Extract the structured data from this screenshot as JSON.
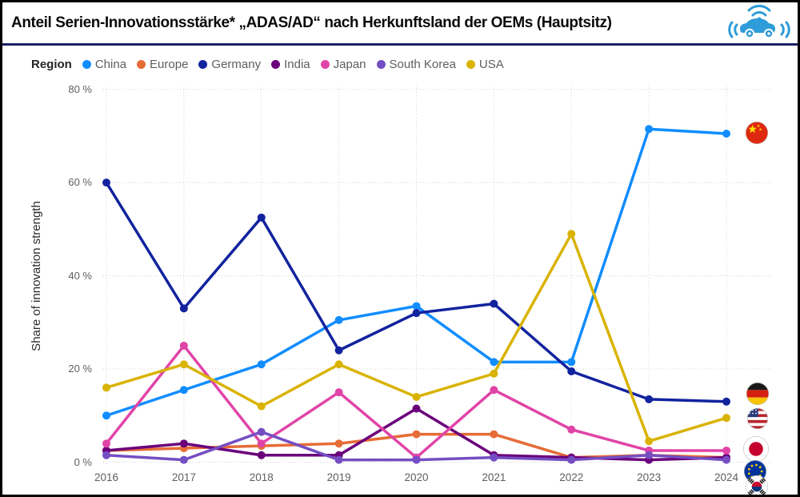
{
  "window": {
    "title": "Anteil Serien-Innovationsstärke* „ADAS/AD“ nach Herkunftsland der OEMs (Hauptsitz)",
    "header_icon": "connected-car-icon"
  },
  "legend": {
    "title": "Region"
  },
  "chart_data": {
    "type": "line",
    "title": "Anteil Serien-Innovationsstärke* „ADAS/AD“ nach Herkunftsland der OEMs (Hauptsitz)",
    "x": [
      "2016",
      "2017",
      "2018",
      "2019",
      "2020",
      "2021",
      "2022",
      "2023",
      "2024"
    ],
    "xlabel": "",
    "ylabel": "Share of innovation strength",
    "ylim": [
      0,
      80
    ],
    "yticks": [
      0,
      20,
      40,
      60,
      80
    ],
    "ytick_labels": [
      "0 %",
      "20 %",
      "40 %",
      "60 %",
      "80 %"
    ],
    "grid": true,
    "legend_position": "top",
    "series": [
      {
        "name": "China",
        "color": "#118DFF",
        "values": [
          10,
          15.5,
          21,
          30.5,
          33.5,
          21.5,
          21.5,
          71.5,
          70.5
        ]
      },
      {
        "name": "Europe",
        "color": "#E66C37",
        "values": [
          2.5,
          3,
          3.5,
          4,
          6,
          6,
          1,
          1.5,
          1
        ]
      },
      {
        "name": "Germany",
        "color": "#12239E",
        "values": [
          60,
          33,
          52.5,
          24,
          32,
          34,
          19.5,
          13.5,
          13
        ]
      },
      {
        "name": "India",
        "color": "#6B007B",
        "values": [
          2.5,
          4,
          1.5,
          1.5,
          11.5,
          1.5,
          1,
          0.5,
          1
        ]
      },
      {
        "name": "Japan",
        "color": "#E044A7",
        "values": [
          4,
          25,
          4,
          15,
          1,
          15.5,
          7,
          2.5,
          2.5
        ]
      },
      {
        "name": "South Korea",
        "color": "#744EC2",
        "values": [
          1.5,
          0.5,
          6.5,
          0.5,
          0.5,
          1,
          0.5,
          1.5,
          0.5
        ]
      },
      {
        "name": "USA",
        "color": "#D9B300",
        "values": [
          16,
          21,
          12,
          21,
          14,
          19,
          49,
          4.5,
          9.5
        ]
      }
    ],
    "flag_markers": [
      "China",
      "Germany",
      "USA",
      "Japan",
      "EU",
      "South Korea"
    ]
  }
}
